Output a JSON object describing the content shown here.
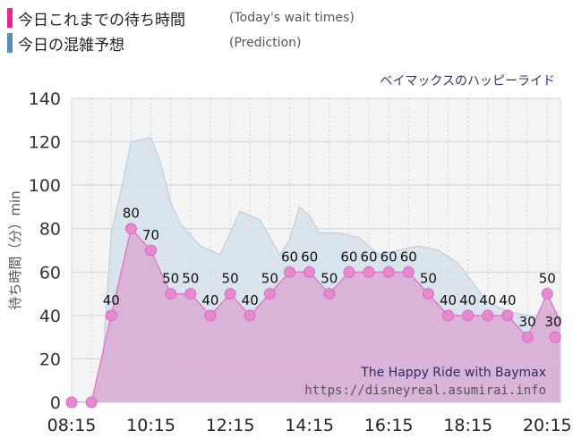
{
  "legend": {
    "actual_jp": "今日これまでの待ち時間",
    "actual_en": "(Today's wait times)",
    "prediction_jp": "今日の混雑予想",
    "prediction_en": "(Prediction)",
    "actual_color": "#e8248e",
    "prediction_color": "#5b8db8"
  },
  "ride_name": "ベイマックスのハッピーライド",
  "watermark": {
    "line1": "The Happy Ride with Baymax",
    "line2": "https://disneyreal.asumirai.info"
  },
  "chart_data": {
    "type": "area",
    "ylabel": "待ち時間（分）min",
    "ylim": [
      0,
      140
    ],
    "xlim": [
      "08:15",
      "20:35"
    ],
    "yticks": [
      0,
      20,
      40,
      60,
      80,
      100,
      120,
      140
    ],
    "xticks": [
      "08:15",
      "10:15",
      "12:15",
      "14:15",
      "16:15",
      "18:15",
      "20:15"
    ],
    "grid": true,
    "series": [
      {
        "name": "今日これまでの待ち時間",
        "kind": "actual",
        "color": "#e07bc4",
        "fill": "#d9a6d3",
        "x": [
          "08:15",
          "08:45",
          "09:15",
          "09:45",
          "10:15",
          "10:45",
          "11:15",
          "11:45",
          "12:15",
          "12:45",
          "13:15",
          "13:45",
          "14:15",
          "14:45",
          "15:15",
          "15:45",
          "16:15",
          "16:45",
          "17:15",
          "17:45",
          "18:15",
          "18:45",
          "19:15",
          "19:45",
          "20:15",
          "20:45"
        ],
        "values": [
          0,
          0,
          40,
          80,
          70,
          50,
          50,
          40,
          50,
          40,
          50,
          60,
          60,
          50,
          60,
          60,
          60,
          60,
          50,
          40,
          40,
          40,
          40,
          30,
          50,
          30
        ]
      },
      {
        "name": "今日の混雑予想",
        "kind": "prediction",
        "color": "#b8c9d6",
        "fill": "#d5e1ea",
        "x": [
          "08:15",
          "08:45",
          "09:00",
          "09:15",
          "09:30",
          "09:45",
          "10:15",
          "10:30",
          "10:45",
          "11:00",
          "11:30",
          "12:00",
          "12:15",
          "12:30",
          "13:00",
          "13:30",
          "13:45",
          "14:00",
          "14:15",
          "14:30",
          "14:45",
          "15:00",
          "15:30",
          "16:00",
          "16:30",
          "17:00",
          "17:30",
          "18:00",
          "18:15",
          "18:45",
          "19:15",
          "19:45",
          "20:00",
          "20:15",
          "20:30"
        ],
        "values": [
          0,
          0,
          10,
          78,
          98,
          120,
          122,
          110,
          92,
          82,
          72,
          68,
          78,
          88,
          84,
          68,
          75,
          90,
          86,
          78,
          78,
          78,
          76,
          68,
          70,
          72,
          70,
          64,
          58,
          46,
          42,
          40,
          38,
          40,
          42
        ]
      }
    ],
    "data_labels": [
      {
        "x": "09:15",
        "y": 40,
        "text": "40"
      },
      {
        "x": "09:45",
        "y": 80,
        "text": "80"
      },
      {
        "x": "10:15",
        "y": 70,
        "text": "70"
      },
      {
        "x": "10:45",
        "y": 50,
        "text": "50"
      },
      {
        "x": "11:15",
        "y": 50,
        "text": "50"
      },
      {
        "x": "11:45",
        "y": 40,
        "text": "40"
      },
      {
        "x": "12:15",
        "y": 50,
        "text": "50"
      },
      {
        "x": "12:45",
        "y": 40,
        "text": "40"
      },
      {
        "x": "13:15",
        "y": 50,
        "text": "50"
      },
      {
        "x": "13:45",
        "y": 60,
        "text": "60"
      },
      {
        "x": "14:15",
        "y": 60,
        "text": "60"
      },
      {
        "x": "14:45",
        "y": 50,
        "text": "50"
      },
      {
        "x": "15:15",
        "y": 60,
        "text": "60"
      },
      {
        "x": "15:45",
        "y": 60,
        "text": "60"
      },
      {
        "x": "16:15",
        "y": 60,
        "text": "60"
      },
      {
        "x": "16:45",
        "y": 60,
        "text": "60"
      },
      {
        "x": "17:15",
        "y": 50,
        "text": "50"
      },
      {
        "x": "17:45",
        "y": 40,
        "text": "40"
      },
      {
        "x": "18:15",
        "y": 40,
        "text": "40"
      },
      {
        "x": "18:45",
        "y": 40,
        "text": "40"
      },
      {
        "x": "19:15",
        "y": 40,
        "text": "40"
      },
      {
        "x": "19:45",
        "y": 30,
        "text": "30"
      },
      {
        "x": "20:15",
        "y": 50,
        "text": "50"
      },
      {
        "x": "20:45",
        "y": 30,
        "text": "30"
      }
    ]
  }
}
